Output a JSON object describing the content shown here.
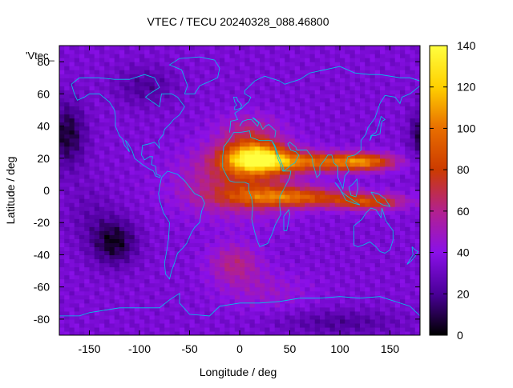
{
  "chart_data": {
    "type": "heatmap",
    "title": "VTEC / TECU 20240328_088.46800",
    "xlabel": "Longitude / deg",
    "ylabel": "Latitude / deg",
    "key_label": "'Vtec_",
    "xlim": [
      -180,
      180
    ],
    "ylim": [
      -90,
      90
    ],
    "x_ticks": [
      "-150",
      "-100",
      "-50",
      "0",
      "50",
      "100",
      "150"
    ],
    "x_tick_values": [
      -150,
      -100,
      -50,
      0,
      50,
      100,
      150
    ],
    "y_ticks": [
      "-80",
      "-60",
      "-40",
      "-20",
      "0",
      "20",
      "40",
      "60",
      "80"
    ],
    "y_tick_values": [
      -80,
      -60,
      -40,
      -20,
      0,
      20,
      40,
      60,
      80
    ],
    "colorbar": {
      "range": [
        0,
        140
      ],
      "ticks": [
        "0",
        "20",
        "40",
        "60",
        "80",
        "100",
        "120",
        "140"
      ],
      "tick_values": [
        0,
        20,
        40,
        60,
        80,
        100,
        120,
        140
      ]
    },
    "grid_resolution_deg": [
      5,
      2.5
    ],
    "background_tecu": 35,
    "features": [
      {
        "name": "equatorial-anomaly-africa-crest",
        "lon": 15,
        "lat": 20,
        "tecu": 135
      },
      {
        "name": "equatorial-band-north",
        "lon": 50,
        "lat": 18,
        "tecu": 100
      },
      {
        "name": "equatorial-band-south",
        "lon": 60,
        "lat": -5,
        "tecu": 95
      },
      {
        "name": "asia-crest-north",
        "lon": 120,
        "lat": 18,
        "tecu": 80
      },
      {
        "name": "asia-crest-south",
        "lon": 150,
        "lat": -8,
        "tecu": 75
      },
      {
        "name": "atlantic-southern-enhancement",
        "lon": -5,
        "lat": -45,
        "tecu": 60
      },
      {
        "name": "pacific-southeast-minimum",
        "lon": -120,
        "lat": -32,
        "tecu": 5
      },
      {
        "name": "north-pacific-minimum",
        "lon": -170,
        "lat": 35,
        "tecu": 10
      },
      {
        "name": "east-asia-night-minimum",
        "lon": 180,
        "lat": 35,
        "tecu": 10
      },
      {
        "name": "north-canada-low",
        "lon": -95,
        "lat": 65,
        "tecu": 22
      },
      {
        "name": "antarctic-low",
        "lon": 100,
        "lat": -82,
        "tecu": 22
      }
    ],
    "colors": {
      "palette_stops": [
        "#000000",
        "#4a0098",
        "#8a10e8",
        "#b3218e",
        "#cc3b00",
        "#e86e00",
        "#ffd000",
        "#ffff40"
      ],
      "coastline": "#00c8e8",
      "frame": "#000000"
    }
  }
}
